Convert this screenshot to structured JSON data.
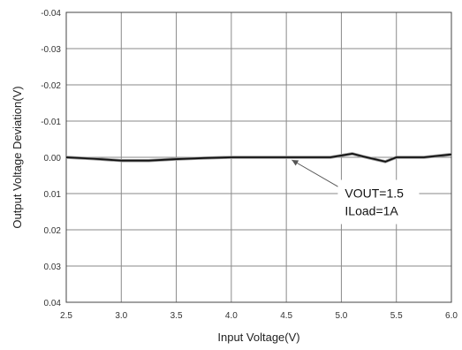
{
  "chart_data": {
    "type": "line",
    "xlabel": "Input Voltage(V)",
    "ylabel": "Output Voltage Deviation(V)",
    "xlim": [
      2.5,
      6.0
    ],
    "ylim": [
      -0.04,
      0.04
    ],
    "y_axis_inverted": true,
    "grid": true,
    "x_ticks": [
      "2.5",
      "3.0",
      "3.5",
      "4.0",
      "4.5",
      "5.0",
      "5.5",
      "6.0"
    ],
    "x_tick_values": [
      2.5,
      3.0,
      3.5,
      4.0,
      4.5,
      5.0,
      5.5,
      6.0
    ],
    "y_ticks": [
      "-0.04",
      "-0.03",
      "-0.02",
      "-0.01",
      "0.00",
      "0.01",
      "0.02",
      "0.03",
      "0.04"
    ],
    "y_tick_values": [
      -0.04,
      -0.03,
      -0.02,
      -0.01,
      0.0,
      0.01,
      0.02,
      0.03,
      0.04
    ],
    "series": [
      {
        "color": "#111111",
        "x": [
          2.5,
          2.75,
          3.0,
          3.25,
          3.5,
          3.75,
          4.0,
          4.25,
          4.5,
          4.75,
          4.9,
          5.0,
          5.1,
          5.2,
          5.3,
          5.4,
          5.5,
          5.75,
          6.0
        ],
        "y": [
          0.0,
          0.0004,
          0.0009,
          0.0009,
          0.0005,
          0.0002,
          0.0,
          0.0,
          0.0,
          0.0,
          0.0,
          -0.0005,
          -0.001,
          -0.0002,
          0.0005,
          0.0012,
          0.0,
          0.0,
          -0.0008
        ]
      }
    ],
    "annotation": {
      "lines": [
        "VOUT=1.5",
        "ILoad=1A"
      ],
      "arrow_target": [
        4.55,
        0.0
      ],
      "arrow_origin": [
        5.0,
        0.0055
      ]
    }
  }
}
